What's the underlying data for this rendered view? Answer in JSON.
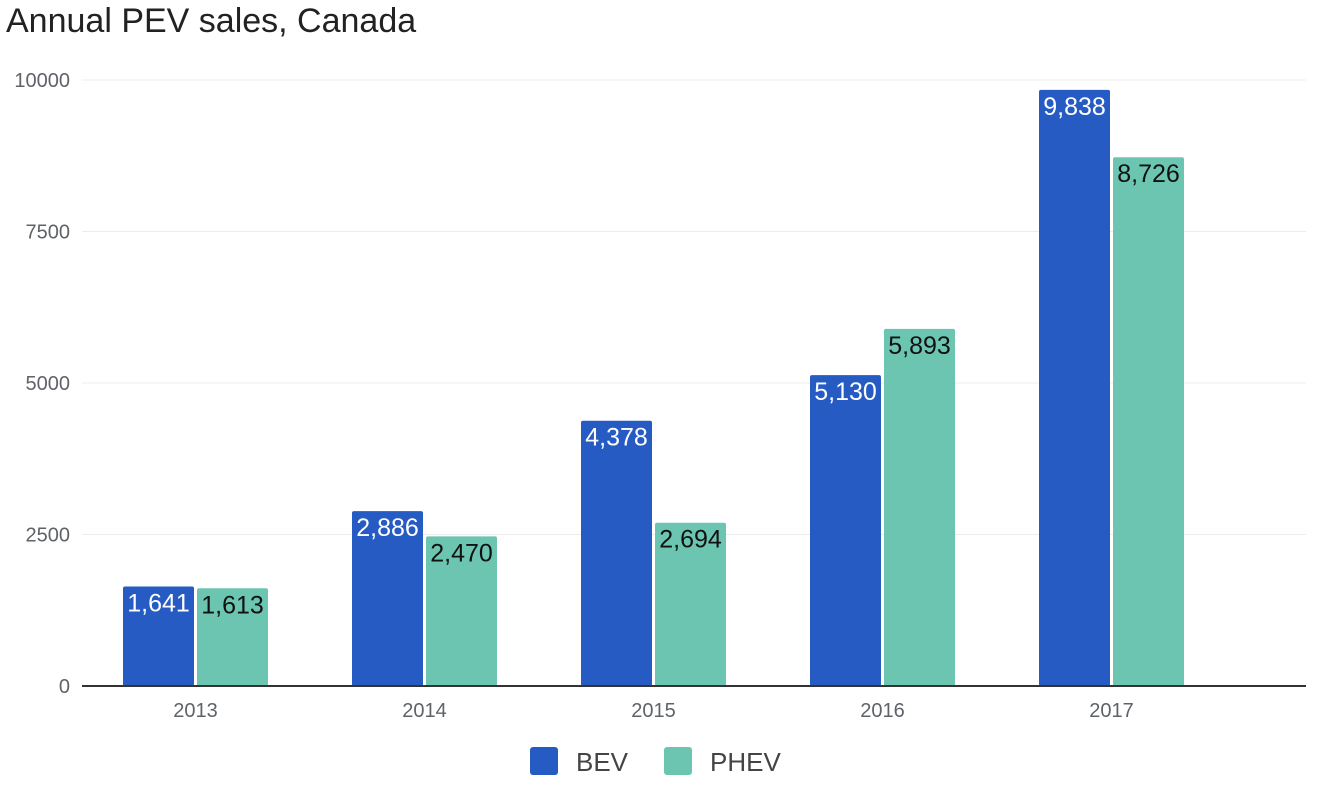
{
  "title": "Annual PEV sales, Canada",
  "chart_data": {
    "type": "bar",
    "title": "Annual PEV sales, Canada",
    "xlabel": "",
    "ylabel": "",
    "categories": [
      "2013",
      "2014",
      "2015",
      "2016",
      "2017"
    ],
    "ylim": [
      0,
      10000
    ],
    "yticks": [
      0,
      2500,
      5000,
      7500,
      10000
    ],
    "ytick_labels": [
      "0",
      "2500",
      "5000",
      "7500",
      "10000"
    ],
    "grid": true,
    "legend_position": "bottom",
    "series": [
      {
        "name": "BEV",
        "color": "#255bc2",
        "label_color": "#ffffff",
        "values": [
          1641,
          2886,
          4378,
          5130,
          9838
        ],
        "data_labels": [
          "1,641",
          "2,886",
          "4,378",
          "5,130",
          "9,838"
        ]
      },
      {
        "name": "PHEV",
        "color": "#6bc5b1",
        "label_color": "#111111",
        "values": [
          1613,
          2470,
          2694,
          5893,
          8726
        ],
        "data_labels": [
          "1,613",
          "2,470",
          "2,694",
          "5,893",
          "8,726"
        ]
      }
    ]
  }
}
